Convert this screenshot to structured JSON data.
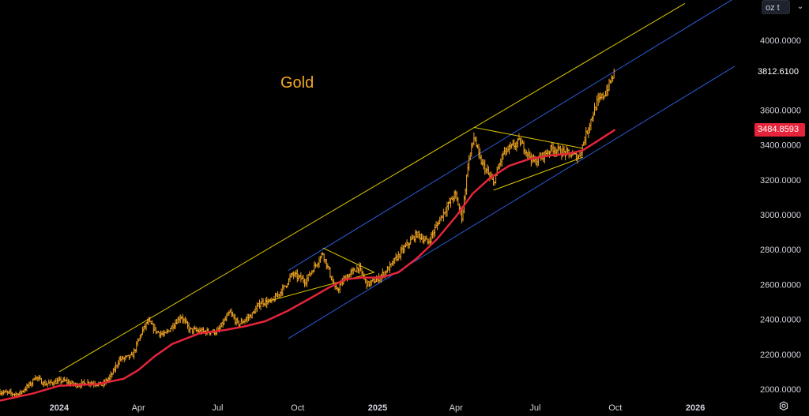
{
  "header": {
    "unit_label": "oz t",
    "unit_chevron": "⌄"
  },
  "title": "Gold",
  "price_tags": {
    "last_price": "3812.6100",
    "moving_average": "3484.8593"
  },
  "colors": {
    "background": "#000000",
    "candle": "#f5a623",
    "moving_average": "#e5243b",
    "channel_upper": "#e0c800",
    "channel_blue": "#2b5bd7",
    "triangle": "#e0c800"
  },
  "chart_data": {
    "type": "line",
    "title": "Gold",
    "xlabel": "",
    "ylabel": "",
    "ylim": [
      1960,
      4230
    ],
    "y_ticks": [
      "2000.0000",
      "2200.0000",
      "2400.0000",
      "2600.0000",
      "2800.0000",
      "3000.0000",
      "3200.0000",
      "3400.0000",
      "3600.0000",
      "3800.0000",
      "4000.0000"
    ],
    "x_ticks": [
      {
        "label": "2024",
        "t": "2024-01-01",
        "year": true
      },
      {
        "label": "Apr",
        "t": "2024-04-01",
        "year": false
      },
      {
        "label": "Jul",
        "t": "2024-07-01",
        "year": false
      },
      {
        "label": "Oct",
        "t": "2024-10-01",
        "year": false
      },
      {
        "label": "2025",
        "t": "2025-01-01",
        "year": true
      },
      {
        "label": "Apr",
        "t": "2025-04-01",
        "year": false
      },
      {
        "label": "Jul",
        "t": "2025-07-01",
        "year": false
      },
      {
        "label": "Oct",
        "t": "2025-10-01",
        "year": false
      },
      {
        "label": "2026",
        "t": "2026-01-01",
        "year": true
      }
    ],
    "x_range": [
      "2023-10-25",
      "2026-03-10"
    ],
    "series": [
      {
        "name": "",
        "kind": "price",
        "points": [
          [
            "2023-10-25",
            1985
          ],
          [
            "2023-11-15",
            1970
          ],
          [
            "2023-12-01",
            2040
          ],
          [
            "2023-12-04",
            2075
          ],
          [
            "2023-12-15",
            2030
          ],
          [
            "2024-01-05",
            2050
          ],
          [
            "2024-01-20",
            2025
          ],
          [
            "2024-02-05",
            2040
          ],
          [
            "2024-02-20",
            2025
          ],
          [
            "2024-03-01",
            2080
          ],
          [
            "2024-03-10",
            2170
          ],
          [
            "2024-03-25",
            2190
          ],
          [
            "2024-04-05",
            2330
          ],
          [
            "2024-04-12",
            2390
          ],
          [
            "2024-04-22",
            2330
          ],
          [
            "2024-05-01",
            2310
          ],
          [
            "2024-05-20",
            2420
          ],
          [
            "2024-05-30",
            2340
          ],
          [
            "2024-06-15",
            2330
          ],
          [
            "2024-07-01",
            2330
          ],
          [
            "2024-07-15",
            2440
          ],
          [
            "2024-07-25",
            2370
          ],
          [
            "2024-08-10",
            2430
          ],
          [
            "2024-08-20",
            2500
          ],
          [
            "2024-09-01",
            2500
          ],
          [
            "2024-09-15",
            2580
          ],
          [
            "2024-09-25",
            2660
          ],
          [
            "2024-10-10",
            2620
          ],
          [
            "2024-10-30",
            2780
          ],
          [
            "2024-11-14",
            2560
          ],
          [
            "2024-11-25",
            2640
          ],
          [
            "2024-12-10",
            2700
          ],
          [
            "2024-12-20",
            2600
          ],
          [
            "2025-01-01",
            2630
          ],
          [
            "2025-01-15",
            2700
          ],
          [
            "2025-01-30",
            2800
          ],
          [
            "2025-02-15",
            2890
          ],
          [
            "2025-02-28",
            2840
          ],
          [
            "2025-03-15",
            2990
          ],
          [
            "2025-03-31",
            3120
          ],
          [
            "2025-04-08",
            2980
          ],
          [
            "2025-04-15",
            3300
          ],
          [
            "2025-04-22",
            3450
          ],
          [
            "2025-04-28",
            3320
          ],
          [
            "2025-05-14",
            3180
          ],
          [
            "2025-05-25",
            3350
          ],
          [
            "2025-06-13",
            3420
          ],
          [
            "2025-06-30",
            3300
          ],
          [
            "2025-07-20",
            3380
          ],
          [
            "2025-08-01",
            3360
          ],
          [
            "2025-08-20",
            3330
          ],
          [
            "2025-09-02",
            3530
          ],
          [
            "2025-09-10",
            3640
          ],
          [
            "2025-09-20",
            3700
          ],
          [
            "2025-09-30",
            3812.61
          ]
        ]
      },
      {
        "name": "",
        "kind": "moving_average",
        "points": [
          [
            "2023-10-25",
            1935
          ],
          [
            "2023-12-01",
            1975
          ],
          [
            "2024-01-01",
            2020
          ],
          [
            "2024-02-15",
            2030
          ],
          [
            "2024-03-15",
            2060
          ],
          [
            "2024-04-01",
            2110
          ],
          [
            "2024-04-20",
            2190
          ],
          [
            "2024-05-10",
            2260
          ],
          [
            "2024-06-10",
            2320
          ],
          [
            "2024-07-10",
            2340
          ],
          [
            "2024-08-01",
            2360
          ],
          [
            "2024-08-25",
            2390
          ],
          [
            "2024-09-20",
            2450
          ],
          [
            "2024-10-15",
            2520
          ],
          [
            "2024-11-05",
            2580
          ],
          [
            "2024-11-25",
            2630
          ],
          [
            "2024-12-15",
            2640
          ],
          [
            "2025-01-05",
            2640
          ],
          [
            "2025-01-25",
            2670
          ],
          [
            "2025-02-15",
            2750
          ],
          [
            "2025-03-10",
            2860
          ],
          [
            "2025-04-01",
            2990
          ],
          [
            "2025-04-20",
            3120
          ],
          [
            "2025-05-10",
            3210
          ],
          [
            "2025-06-01",
            3280
          ],
          [
            "2025-06-25",
            3320
          ],
          [
            "2025-07-20",
            3340
          ],
          [
            "2025-08-10",
            3350
          ],
          [
            "2025-08-25",
            3370
          ],
          [
            "2025-09-10",
            3420
          ],
          [
            "2025-09-30",
            3484.8593
          ]
        ]
      }
    ],
    "drawings": [
      {
        "name": "upper-trendline",
        "color": "#e0c800",
        "from": [
          "2024-01-01",
          2100
        ],
        "to": [
          "2025-12-20",
          4210
        ]
      },
      {
        "name": "channel-upper",
        "color": "#2b5bd7",
        "from": [
          "2024-09-20",
          2680
        ],
        "to": [
          "2026-02-15",
          4240
        ]
      },
      {
        "name": "channel-lower",
        "color": "#2b5bd7",
        "from": [
          "2024-09-20",
          2290
        ],
        "to": [
          "2026-02-15",
          3850
        ]
      },
      {
        "name": "triangle-1-top",
        "color": "#e0c800",
        "from": [
          "2024-10-30",
          2810
        ],
        "to": [
          "2024-12-28",
          2670
        ]
      },
      {
        "name": "triangle-1-bottom",
        "color": "#e0c800",
        "from": [
          "2024-08-25",
          2500
        ],
        "to": [
          "2024-12-28",
          2670
        ]
      },
      {
        "name": "triangle-2-top",
        "color": "#e0c800",
        "from": [
          "2025-04-22",
          3500
        ],
        "to": [
          "2025-08-25",
          3380
        ]
      },
      {
        "name": "triangle-2-bottom",
        "color": "#e0c800",
        "from": [
          "2025-05-14",
          3140
        ],
        "to": [
          "2025-08-25",
          3330
        ]
      }
    ]
  }
}
